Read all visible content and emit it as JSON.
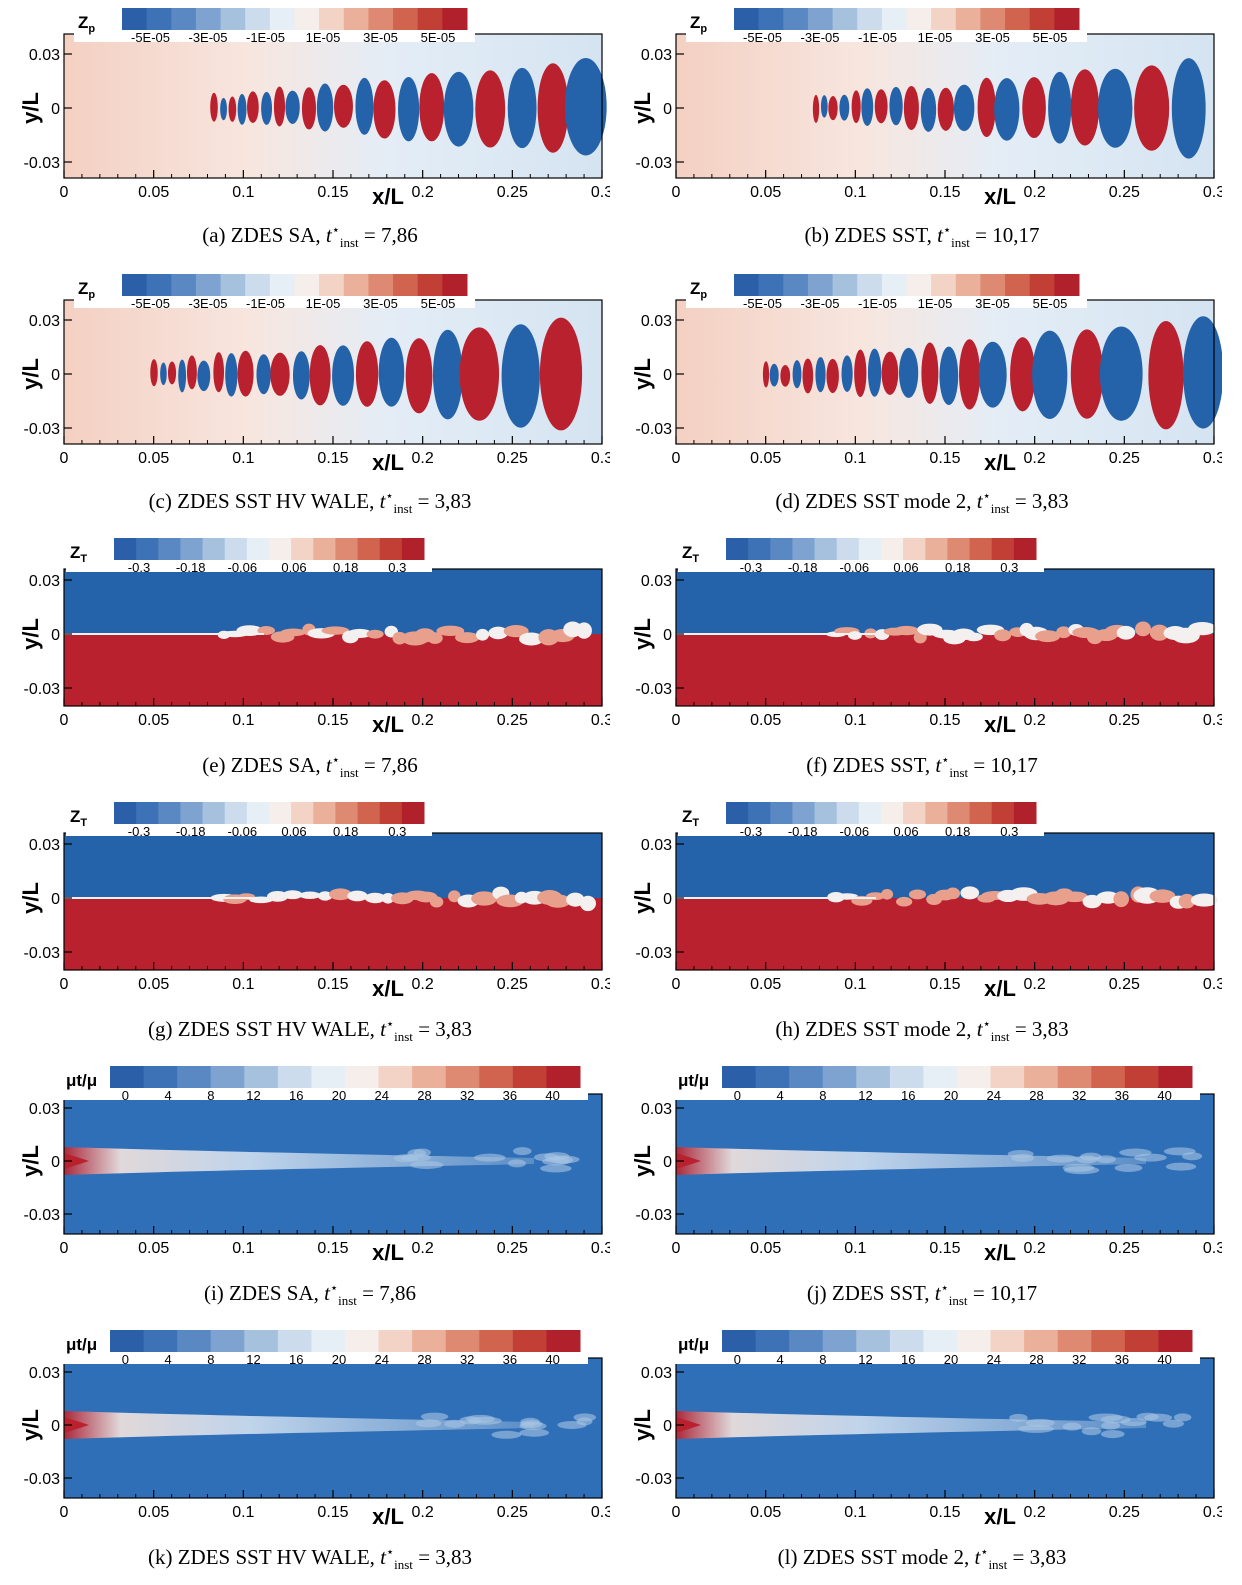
{
  "axes": {
    "xlabel": "x/L",
    "ylabel": "y/L",
    "xticks": [
      "0",
      "0.05",
      "0.1",
      "0.15",
      "0.2",
      "0.25",
      "0.3"
    ],
    "yticks": [
      "0.03",
      "0",
      "-0.03"
    ]
  },
  "colorbars": {
    "zp": {
      "title": "Zp",
      "ticks": [
        "-5E-05",
        "-3E-05",
        "-1E-05",
        "1E-05",
        "3E-05",
        "5E-05"
      ]
    },
    "zt": {
      "title": "ZT",
      "ticks": [
        "-0.3",
        "-0.18",
        "-0.06",
        "0.06",
        "0.18",
        "0.3"
      ]
    },
    "mu": {
      "title": "μt/μ",
      "ticks": [
        "0",
        "4",
        "8",
        "12",
        "16",
        "20",
        "24",
        "28",
        "32",
        "36",
        "40"
      ]
    }
  },
  "panels": [
    {
      "id": "a",
      "field": "zp",
      "caption": "(a) ZDES SA,",
      "time": "= 7,86"
    },
    {
      "id": "b",
      "field": "zp",
      "caption": "(b) ZDES SST,",
      "time": "= 10,17"
    },
    {
      "id": "c",
      "field": "zp",
      "caption": "(c) ZDES SST HV WALE,",
      "time": "= 3,83"
    },
    {
      "id": "d",
      "field": "zp",
      "caption": "(d) ZDES SST mode 2,",
      "time": "= 3,83"
    },
    {
      "id": "e",
      "field": "zt",
      "caption": "(e) ZDES SA,",
      "time": "= 7,86"
    },
    {
      "id": "f",
      "field": "zt",
      "caption": "(f) ZDES SST,",
      "time": "= 10,17"
    },
    {
      "id": "g",
      "field": "zt",
      "caption": "(g) ZDES SST HV WALE,",
      "time": "= 3,83"
    },
    {
      "id": "h",
      "field": "zt",
      "caption": "(h) ZDES SST mode 2,",
      "time": "= 3,83"
    },
    {
      "id": "i",
      "field": "mu",
      "caption": "(i) ZDES SA,",
      "time": "= 7,86"
    },
    {
      "id": "j",
      "field": "mu",
      "caption": "(j) ZDES SST,",
      "time": "= 10,17"
    },
    {
      "id": "k",
      "field": "mu",
      "caption": "(k) ZDES SST HV WALE,",
      "time": "= 3,83"
    },
    {
      "id": "l",
      "field": "mu",
      "caption": "(l) ZDES SST mode 2,",
      "time": "= 3,83"
    }
  ],
  "time_symbol": "t",
  "time_sup": "⋆",
  "time_sub": "inst",
  "colors": {
    "blue": "#2f6fb8",
    "deep_blue": "#1f5fa8",
    "red": "#b9212e",
    "light_red": "#f2c3b0",
    "light_blue": "#dbe8f4"
  }
}
